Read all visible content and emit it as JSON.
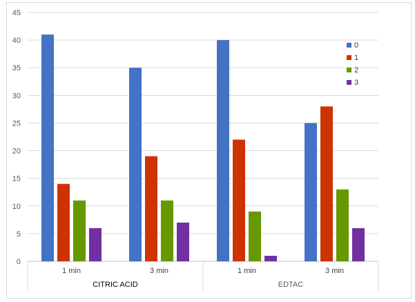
{
  "chart_data": {
    "type": "bar",
    "ylim": [
      0,
      45
    ],
    "yticks": [
      "0",
      "5",
      "10",
      "15",
      "20",
      "25",
      "30",
      "35",
      "40",
      "45"
    ],
    "grid": true,
    "legend_position": "top-right",
    "categories": [
      "1 min",
      "3 min",
      "1 min",
      "3 min"
    ],
    "groups": [
      {
        "label": "CITRIC ACID",
        "color": "#000000"
      },
      {
        "label": "EDTAC",
        "color": "#595959"
      }
    ],
    "series": [
      {
        "name": "0",
        "color": "#4472c4",
        "values": [
          41,
          35,
          40,
          25
        ]
      },
      {
        "name": "1",
        "color": "#cc3300",
        "values": [
          14,
          19,
          22,
          28
        ]
      },
      {
        "name": "2",
        "color": "#669900",
        "values": [
          11,
          11,
          9,
          13
        ]
      },
      {
        "name": "3",
        "color": "#7030a0",
        "values": [
          6,
          7,
          1,
          6
        ]
      }
    ]
  }
}
